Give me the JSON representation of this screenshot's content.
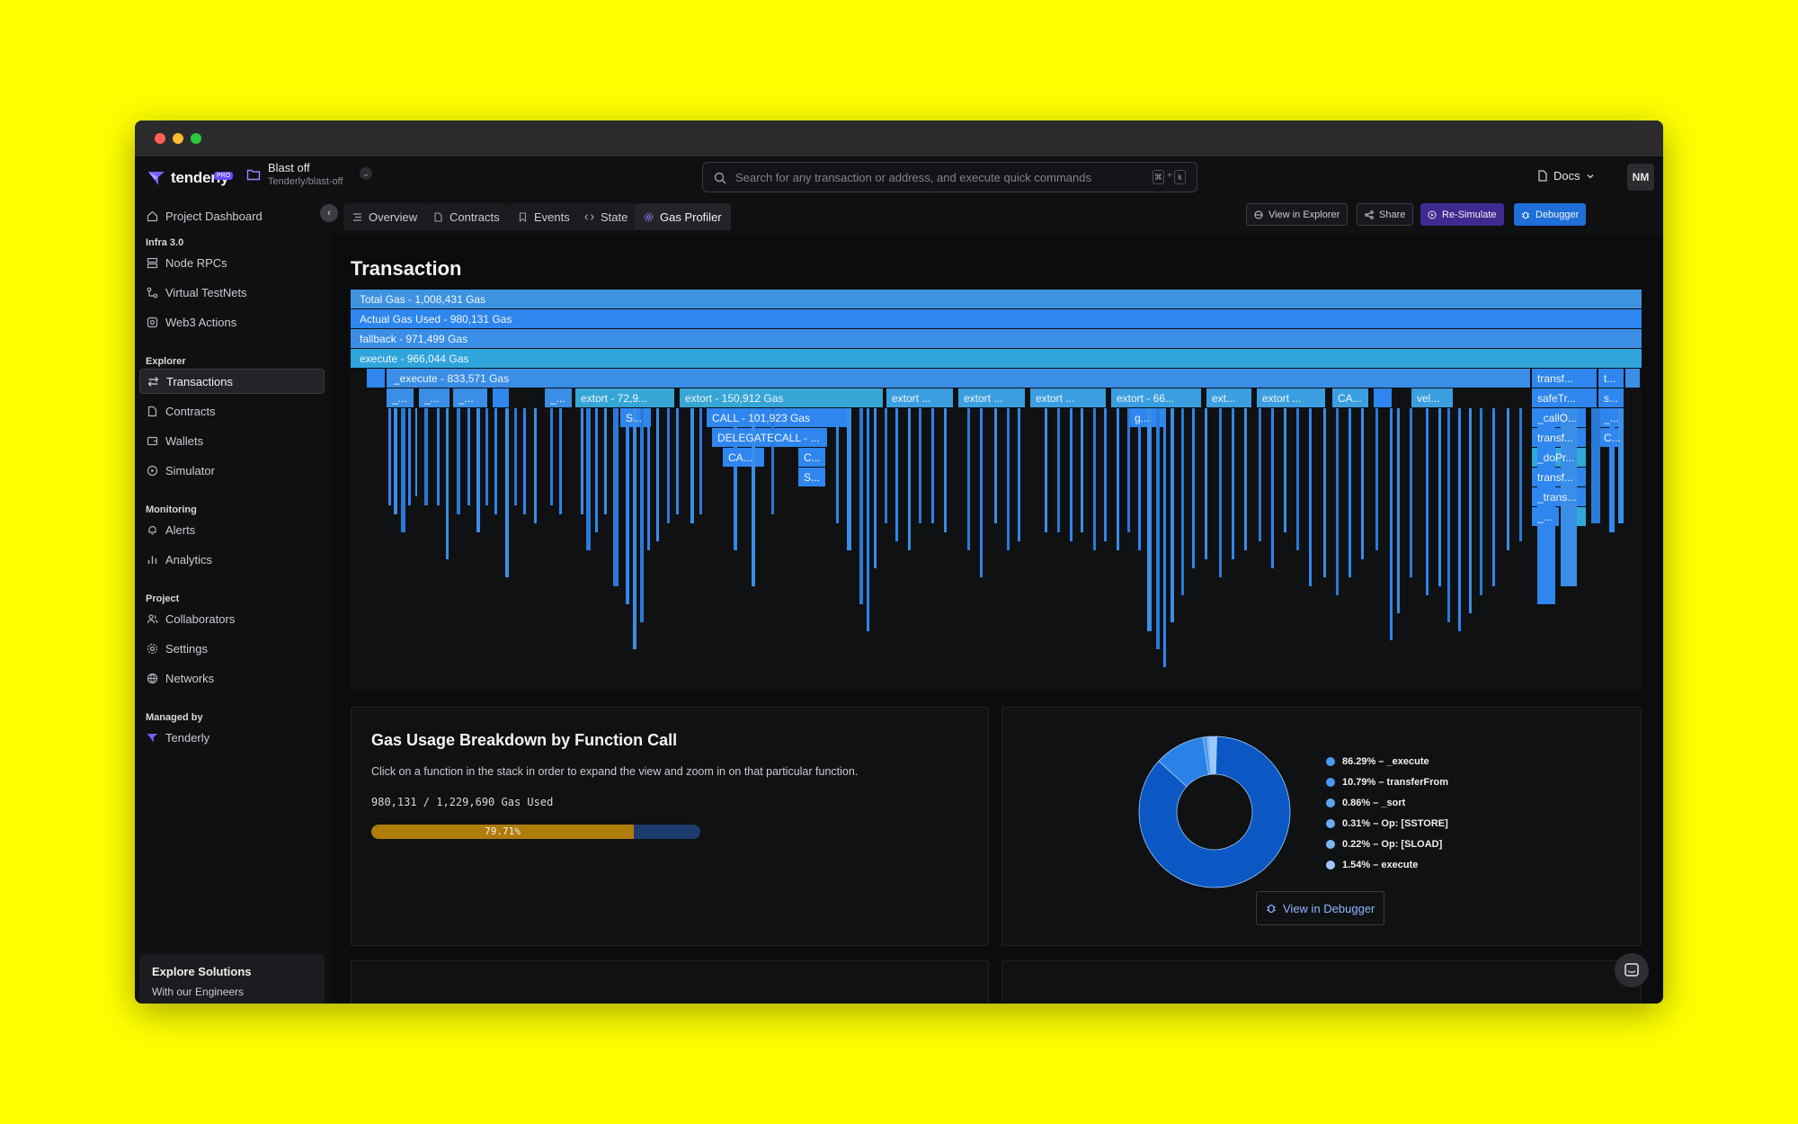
{
  "app": {
    "brand": "tenderly",
    "badge": "PRO",
    "project_name": "Blast off",
    "project_slug": "Tenderly/blast-off"
  },
  "search": {
    "placeholder": "Search for any transaction or address, and execute quick commands",
    "kbd_1": "⌘",
    "kbd_plus": "+",
    "kbd_2": "k"
  },
  "header": {
    "docs_label": "Docs",
    "avatar_initials": "NM"
  },
  "sidebar": {
    "top_item": "Project Dashboard",
    "sections": [
      {
        "title": "Infra 3.0",
        "items": [
          "Node RPCs",
          "Virtual TestNets",
          "Web3 Actions"
        ]
      },
      {
        "title": "Explorer",
        "items": [
          "Transactions",
          "Contracts",
          "Wallets",
          "Simulator"
        ]
      },
      {
        "title": "Monitoring",
        "items": [
          "Alerts",
          "Analytics"
        ]
      },
      {
        "title": "Project",
        "items": [
          "Collaborators",
          "Settings",
          "Networks"
        ]
      },
      {
        "title": "Managed by",
        "items": [
          "Tenderly"
        ]
      }
    ],
    "active_item": "Transactions",
    "explore_title": "Explore Solutions",
    "explore_sub": "With our Engineers"
  },
  "tabs": [
    {
      "label": "Overview"
    },
    {
      "label": "Contracts"
    },
    {
      "label": "Events"
    },
    {
      "label": "State"
    },
    {
      "label": "Gas Profiler"
    }
  ],
  "actions": {
    "view_explorer": "View in Explorer",
    "share": "Share",
    "resimulate": "Re-Simulate",
    "debugger": "Debugger"
  },
  "page": {
    "title": "Transaction"
  },
  "flame": {
    "rows": [
      "Total Gas - 1,008,431 Gas",
      "Actual Gas Used - 980,131 Gas",
      "fallback - 971,499 Gas",
      "execute - 966,044 Gas",
      "_execute - 833,571 Gas"
    ],
    "labels_row5": [
      "_...",
      "_...",
      "_...",
      "_...",
      "extort - 72,9...",
      "extort - 150,912 Gas",
      "extort ...",
      "extort ...",
      "extort ...",
      "extort - 66...",
      "ext...",
      "extort ...",
      "CA...",
      "vel...",
      "safeTr...",
      "s..."
    ],
    "labels_row4_right": [
      "transf...",
      "t..."
    ],
    "labels_row6": [
      "S...",
      "CALL - 101,923 Gas",
      "g...",
      "_callO...",
      "_..."
    ],
    "labels_row7": [
      "DELEGATECALL - ...",
      "transf...",
      "C..."
    ],
    "labels_row8": [
      "CA...",
      "C...",
      "_doPr..."
    ],
    "labels_row9": [
      "S...",
      "transf..."
    ],
    "labels_row10": [
      "_trans..."
    ],
    "labels_row11": [
      "_..."
    ]
  },
  "breakdown": {
    "title": "Gas Usage Breakdown by Function Call",
    "description": "Click on a function in the stack in order to expand the view and zoom in on that particular function.",
    "gas_used_text": "980,131 / 1,229,690 Gas Used",
    "progress_label": "79.71%",
    "progress_value": 79.71
  },
  "chart_data": {
    "type": "pie",
    "title": "",
    "slices": [
      {
        "label": "86.29% – _execute",
        "value": 86.29,
        "color": "#0b57c4"
      },
      {
        "label": "10.79% – transferFrom",
        "value": 10.79,
        "color": "#2b82e6"
      },
      {
        "label": "0.86% – _sort",
        "value": 0.86,
        "color": "#4a96ee"
      },
      {
        "label": "0.31% – Op: [SSTORE]",
        "value": 0.31,
        "color": "#63a6f2"
      },
      {
        "label": "0.22% – Op: [SLOAD]",
        "value": 0.22,
        "color": "#7eb6f5"
      },
      {
        "label": "1.54% – execute",
        "value": 1.54,
        "color": "#9bc8f8"
      }
    ],
    "donut": true,
    "legend_position": "right"
  },
  "pie_card": {
    "button": "View in Debugger"
  },
  "colors": {
    "accent_blue": "#1f6fd9",
    "accent_purple": "#3f2a8f",
    "progress_fill": "#b07d0a",
    "progress_track": "#1d3c6e"
  }
}
